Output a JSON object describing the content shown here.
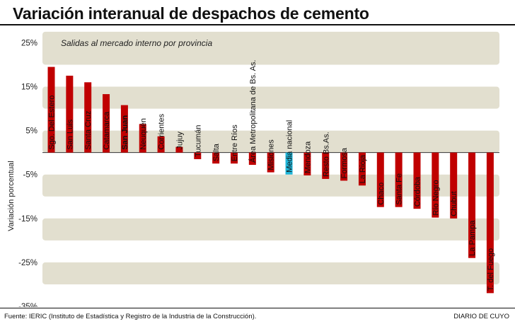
{
  "header": {
    "title": "Variación interanual de despachos de cemento"
  },
  "footer": {
    "source": "Fuente: IERIC (Instituto de Estadística y Registro de la Industria de la Construcción).",
    "brand": "DIARIO DE CUYO"
  },
  "colors": {
    "bar": "#c00000",
    "highlight": "#1fb5d8",
    "band": "#e2dfcf"
  },
  "chart_data": {
    "type": "bar",
    "subtitle": "Salidas al mercado interno por provincia",
    "ylabel": "Variación porcentual",
    "ylim": [
      -35,
      27
    ],
    "yticks": [
      "25%",
      "15%",
      "5%",
      "-5%",
      "-15%",
      "-25%",
      "-35%"
    ],
    "ytick_values": [
      25,
      15,
      5,
      -5,
      -15,
      -25,
      -35
    ],
    "categories": [
      "Sgo. Del Estero",
      "San Luis",
      "Santa Cruz",
      "Catamarca",
      "San Juan",
      "Neuquén",
      "Corrientes",
      "Jujuy",
      "Tucumán",
      "Salta",
      "Entre Ríos",
      "Área Metropolitana de Bs. As.",
      "Misiones",
      "Media nacional",
      "Mendoza",
      "Resto Bs.As.",
      "Formosa",
      "La Rioja",
      "Chaco",
      "Santa Fe",
      "Córdoba",
      "Río Negro",
      "Chubut",
      "La Pampa",
      "T. del Fuego"
    ],
    "values": [
      19.5,
      17.5,
      16.0,
      13.3,
      10.8,
      6.5,
      3.7,
      1.3,
      -1.5,
      -2.5,
      -2.5,
      -2.8,
      -4.5,
      -5.0,
      -5.2,
      -6.0,
      -6.4,
      -7.5,
      -12.4,
      -12.4,
      -12.8,
      -14.8,
      -15.0,
      -24.0,
      -32.0
    ],
    "highlight_index": 13,
    "bold_index": 4
  }
}
